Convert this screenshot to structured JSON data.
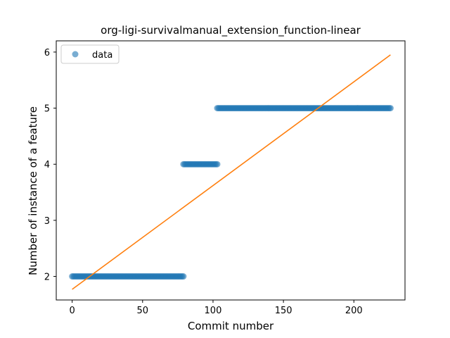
{
  "chart_data": {
    "type": "scatter",
    "title": "org-ligi-survivalmanual_extension_function-linear",
    "xlabel": "Commit number",
    "ylabel": "Number of instance of a feature",
    "xlim": [
      -11.3,
      236.3
    ],
    "ylim": [
      1.58,
      6.2
    ],
    "xticks": [
      0,
      50,
      100,
      150,
      200
    ],
    "yticks": [
      2,
      3,
      4,
      5,
      6
    ],
    "grid": false,
    "legend": {
      "position": "top-left",
      "entries": [
        "data"
      ]
    },
    "series": [
      {
        "name": "data",
        "kind": "points",
        "color": "#1f77b4",
        "alpha": 0.6,
        "segments": [
          {
            "x_start": 0,
            "x_end": 79,
            "y": 2
          },
          {
            "x_start": 79,
            "x_end": 103,
            "y": 4
          },
          {
            "x_start": 103,
            "x_end": 226,
            "y": 5
          }
        ]
      },
      {
        "kind": "line",
        "color": "#ff7f0e",
        "x": [
          0,
          226
        ],
        "y": [
          1.77,
          5.95
        ]
      }
    ]
  }
}
